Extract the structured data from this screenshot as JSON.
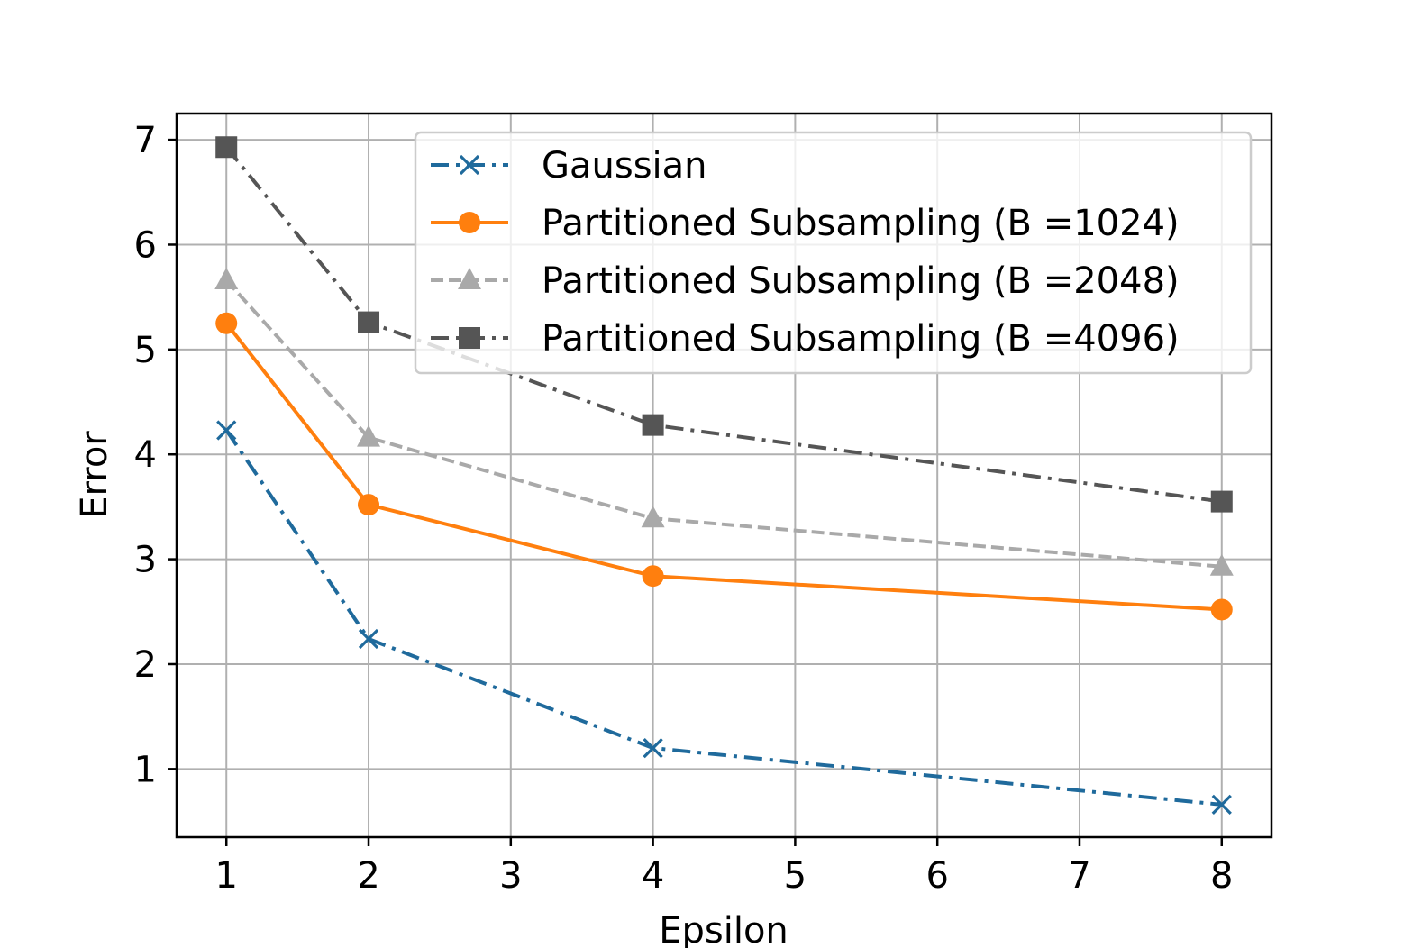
{
  "chart_data": {
    "type": "line",
    "title": "",
    "xlabel": "Epsilon",
    "ylabel": "Error",
    "xlim": [
      0.65,
      8.35
    ],
    "ylim": [
      0.35,
      7.25
    ],
    "xticks": [
      1,
      2,
      3,
      4,
      5,
      6,
      7,
      8
    ],
    "yticks": [
      1,
      2,
      3,
      4,
      5,
      6,
      7
    ],
    "grid": true,
    "legend_position": "top-right",
    "x": [
      1,
      2,
      4,
      8
    ],
    "series": [
      {
        "name": "Gaussian",
        "values": [
          4.23,
          2.24,
          1.2,
          0.66
        ],
        "color": "#1f6a9c",
        "marker": "x",
        "line_style": "dash-dot"
      },
      {
        "name": "Partitioned Subsampling (B =1024)",
        "values": [
          5.25,
          3.52,
          2.84,
          2.52
        ],
        "color": "#ff7f0e",
        "marker": "circle",
        "line_style": "solid"
      },
      {
        "name": "Partitioned Subsampling (B =2048)",
        "values": [
          5.66,
          4.16,
          3.39,
          2.93
        ],
        "color": "#a9a9a9",
        "marker": "triangle",
        "line_style": "dashed"
      },
      {
        "name": "Partitioned Subsampling (B =4096)",
        "values": [
          6.93,
          5.26,
          4.28,
          3.55
        ],
        "color": "#555555",
        "marker": "square",
        "line_style": "dash-dot"
      }
    ]
  }
}
